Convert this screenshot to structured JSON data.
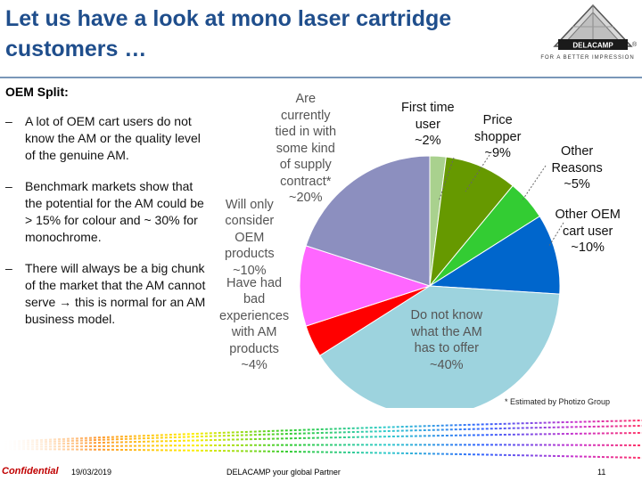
{
  "slide": {
    "title": "Let us have a look at mono laser cartridge customers …",
    "logo_text": "DELACAMP",
    "logo_tagline": "FOR A BETTER IMPRESSION"
  },
  "left_panel": {
    "heading": "OEM Split:",
    "bullets": [
      {
        "dash": "–",
        "text": "A lot of OEM cart users do not know the AM or the quality level of the genuine AM."
      },
      {
        "dash": "–",
        "text": "Benchmark markets show that the potential for the AM could be > 15% for colour and ~ 30% for monochrome."
      },
      {
        "dash": "–",
        "text": "There will always be a big chunk of the market that the AM cannot serve → this is normal for an AM business model."
      }
    ]
  },
  "chart_data": {
    "type": "pie",
    "title": "",
    "slices": [
      {
        "label_lines": [
          "First time",
          "user",
          "~2%"
        ],
        "value": 2,
        "color": "#a9d18e"
      },
      {
        "label_lines": [
          "Price",
          "shopper",
          "~9%"
        ],
        "value": 9,
        "color": "#669900"
      },
      {
        "label_lines": [
          "Other",
          "Reasons",
          "~5%"
        ],
        "value": 5,
        "color": "#33cc33"
      },
      {
        "label_lines": [
          "Other OEM",
          "cart user",
          "~10%"
        ],
        "value": 10,
        "color": "#0066cc"
      },
      {
        "label_lines": [
          "Do not know",
          "what the AM",
          "has to offer",
          "~40%"
        ],
        "value": 40,
        "color": "#9dd3de"
      },
      {
        "label_lines": [
          "Have had",
          "bad",
          "experiences",
          "with AM",
          "products",
          "~4%"
        ],
        "value": 4,
        "color": "#ff0000"
      },
      {
        "label_lines": [
          "Will only",
          "consider",
          "OEM",
          "products",
          "~10%"
        ],
        "value": 10,
        "color": "#ff66ff"
      },
      {
        "label_lines": [
          "Are",
          "currently",
          "tied in with",
          "some kind",
          "of supply",
          "contract*",
          "~20%"
        ],
        "value": 20,
        "color": "#8c8fbf"
      }
    ],
    "start_angle_deg": 0,
    "direction": "clockwise",
    "legend": "none"
  },
  "footnote": "* Estimated by Photizo Group",
  "footer": {
    "confidential": "Confidential",
    "date": "19/03/2019",
    "partner": "DELACAMP your global Partner",
    "page": "11"
  }
}
